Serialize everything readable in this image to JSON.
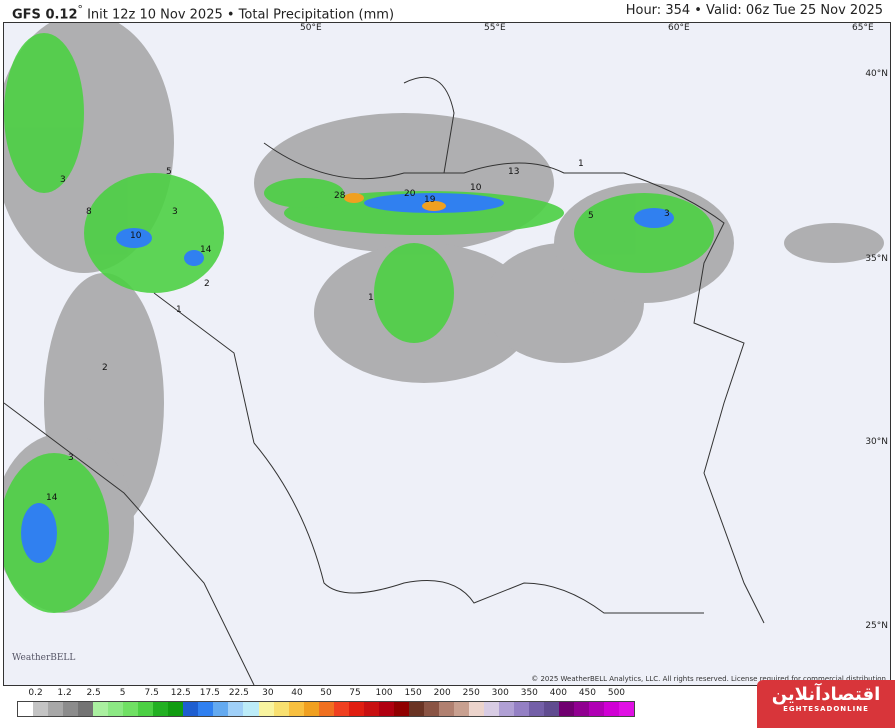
{
  "header": {
    "model": "GFS 0.12",
    "degree": "°",
    "title_rest": " Init 12z 10 Nov 2025 • Total Precipitation (mm)",
    "valid": "Hour: 354 • Valid: 06z Tue 25 Nov 2025"
  },
  "axes": {
    "lon": [
      "50°E",
      "55°E",
      "60°E",
      "65°E"
    ],
    "lat": [
      "40°N",
      "35°N",
      "30°N",
      "25°N"
    ]
  },
  "contour_labels": [
    "3",
    "5",
    "8",
    "3",
    "10",
    "14",
    "2",
    "1",
    "2",
    "3",
    "14",
    "28",
    "20",
    "19",
    "10",
    "13",
    "1",
    "5",
    "3",
    "1"
  ],
  "copyright": "© 2025 WeatherBELL Analytics, LLC. All rights reserved. License required for commercial distribution",
  "watermark": "WeatherBELL",
  "legend": {
    "labels": [
      "0.2",
      "1.2",
      "2.5",
      "5",
      "7.5",
      "12.5",
      "17.5",
      "22.5",
      "30",
      "40",
      "50",
      "75",
      "100",
      "150",
      "200",
      "250",
      "300",
      "350",
      "400",
      "450",
      "500"
    ],
    "colors": [
      "#ffffff",
      "#c4c4c4",
      "#a8a8a8",
      "#8c8c8c",
      "#747474",
      "#aaf0a0",
      "#8ce884",
      "#70e064",
      "#4cd044",
      "#22b022",
      "#109c10",
      "#1e5ed0",
      "#3080f0",
      "#64aaf0",
      "#a0d0f8",
      "#bcecf8",
      "#f8f4a0",
      "#f8e070",
      "#f8c040",
      "#f0a020",
      "#f07020",
      "#f04020",
      "#e01e10",
      "#c81010",
      "#b00010",
      "#900000",
      "#6a3424",
      "#8a5444",
      "#b08070",
      "#c8a090",
      "#ecd4cc",
      "#d8cce4",
      "#b0a0d4",
      "#9480c4",
      "#7460a8",
      "#604c90",
      "#700070",
      "#900090",
      "#b000b4",
      "#d000d4",
      "#e010e4"
    ]
  },
  "logo": {
    "fa": "اقتصادآنلاین",
    "en": "EGHTESADONLINE"
  }
}
